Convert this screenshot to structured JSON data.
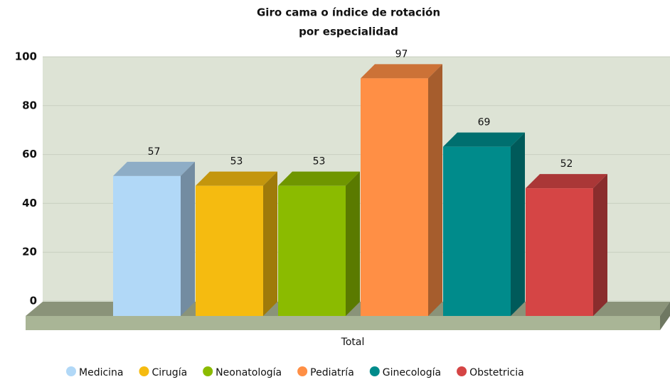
{
  "chart_data": {
    "type": "bar3d",
    "title": "Giro cama o índice de rotación",
    "subtitle": "por especialidad",
    "categories": [
      "Total"
    ],
    "series": [
      {
        "name": "Medicina",
        "color": "#b1d8f7",
        "values": [
          57
        ]
      },
      {
        "name": "Cirugía",
        "color": "#f5bb10",
        "values": [
          53
        ]
      },
      {
        "name": "Neonatología",
        "color": "#8bbb00",
        "values": [
          53
        ]
      },
      {
        "name": "Pediatría",
        "color": "#ff8f45",
        "values": [
          97
        ]
      },
      {
        "name": "Ginecología",
        "color": "#008b8b",
        "values": [
          69
        ]
      },
      {
        "name": "Obstetricia",
        "color": "#d54545",
        "values": [
          52
        ]
      }
    ],
    "ylim": [
      0,
      100
    ],
    "yticks": [
      0,
      20,
      40,
      60,
      80,
      100
    ],
    "grid": true,
    "legend": "bottom"
  }
}
